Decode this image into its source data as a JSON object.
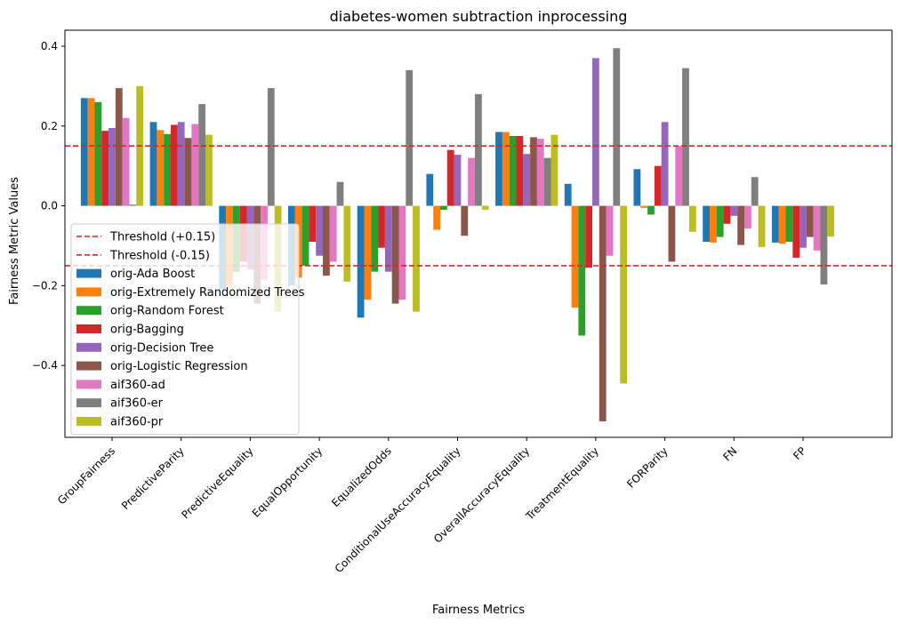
{
  "chart_data": {
    "type": "bar",
    "title": "diabetes-women subtraction inprocessing",
    "xlabel": "Fairness Metrics",
    "ylabel": "Fairness Metric Values",
    "ylim": [
      -0.58,
      0.44
    ],
    "yticks": [
      -0.4,
      -0.2,
      0.0,
      0.2,
      0.4
    ],
    "ytick_labels": [
      "−0.4",
      "−0.2",
      "0.0",
      "0.2",
      "0.4"
    ],
    "grid": false,
    "legend_position": "lower-left",
    "categories": [
      "GroupFairness",
      "PredictiveParity",
      "PredictiveEquality",
      "EqualOpportunity",
      "EqualizedOdds",
      "ConditionalUseAccuracyEquality",
      "OverallAccuracyEquality",
      "TreatmentEquality",
      "FORParity",
      "FN",
      "FP"
    ],
    "thresholds": [
      {
        "name": "Threshold (+0.15)",
        "value": 0.15,
        "color": "#d62728"
      },
      {
        "name": "Threshold (-0.15)",
        "value": -0.15,
        "color": "#d62728"
      }
    ],
    "series": [
      {
        "name": "orig-Ada Boost",
        "color": "#1f77b4",
        "values": [
          0.27,
          0.21,
          -0.21,
          -0.2,
          -0.28,
          0.08,
          0.185,
          0.055,
          0.092,
          -0.09,
          -0.092
        ]
      },
      {
        "name": "orig-Extremely Randomized Trees",
        "color": "#ff7f0e",
        "values": [
          0.27,
          0.19,
          -0.2,
          -0.18,
          -0.235,
          -0.06,
          0.185,
          -0.255,
          -0.005,
          -0.092,
          -0.095
        ]
      },
      {
        "name": "orig-Random Forest",
        "color": "#2ca02c",
        "values": [
          0.26,
          0.18,
          -0.165,
          -0.15,
          -0.165,
          -0.01,
          0.175,
          -0.325,
          -0.022,
          -0.078,
          -0.09
        ]
      },
      {
        "name": "orig-Bagging",
        "color": "#d62728",
        "values": [
          0.188,
          0.203,
          -0.14,
          -0.09,
          -0.105,
          0.14,
          0.175,
          -0.155,
          0.1,
          -0.045,
          -0.13
        ]
      },
      {
        "name": "orig-Decision Tree",
        "color": "#9467bd",
        "values": [
          0.195,
          0.21,
          -0.16,
          -0.125,
          -0.165,
          0.128,
          0.13,
          0.37,
          0.21,
          -0.025,
          -0.105
        ]
      },
      {
        "name": "orig-Logistic Regression",
        "color": "#8c564b",
        "values": [
          0.295,
          0.17,
          -0.245,
          -0.175,
          -0.245,
          -0.075,
          0.172,
          -0.54,
          -0.14,
          -0.098,
          -0.078
        ]
      },
      {
        "name": "aif360-ad",
        "color": "#e377c2",
        "values": [
          0.22,
          0.205,
          -0.185,
          -0.14,
          -0.235,
          0.12,
          0.168,
          -0.125,
          0.15,
          -0.057,
          -0.112
        ]
      },
      {
        "name": "aif360-er",
        "color": "#7f7f7f",
        "values": [
          0.003,
          0.255,
          0.295,
          0.06,
          0.34,
          0.28,
          0.12,
          0.395,
          0.345,
          0.072,
          -0.197
        ]
      },
      {
        "name": "aif360-pr",
        "color": "#bcbd22",
        "values": [
          0.3,
          0.178,
          -0.265,
          -0.19,
          -0.265,
          -0.01,
          0.178,
          -0.445,
          -0.065,
          -0.103,
          -0.077
        ]
      }
    ]
  }
}
